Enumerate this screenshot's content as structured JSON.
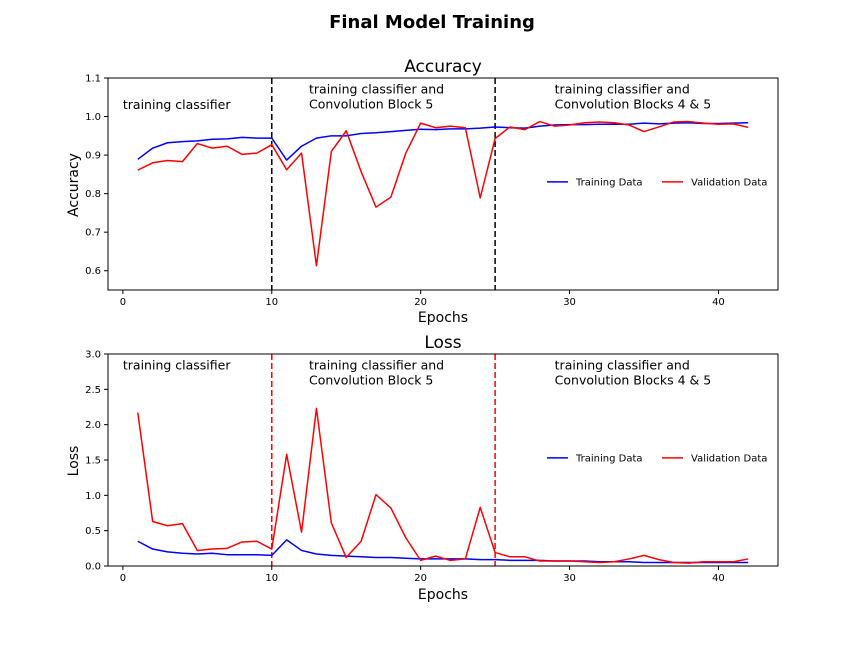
{
  "figure_title": "Final Model Training",
  "colors": {
    "training": "#0000ff",
    "validation": "#ff0000",
    "accuracy_divider": "#000000",
    "loss_divider": "#ff0000"
  },
  "chart_data": [
    {
      "type": "line",
      "title": "Accuracy",
      "xlabel": "Epochs",
      "ylabel": "Accuracy",
      "xlim": [
        -1,
        44
      ],
      "ylim": [
        0.55,
        1.1
      ],
      "xticks": [
        0,
        10,
        20,
        30,
        40
      ],
      "yticks": [
        0.6,
        0.7,
        0.8,
        0.9,
        1.0,
        1.1
      ],
      "ytick_labels": [
        "0.6",
        "0.7",
        "0.8",
        "0.9",
        "1.0",
        "1.1"
      ],
      "grid": false,
      "legend": "center-right",
      "dividers": [
        10,
        25
      ],
      "annotations": [
        {
          "x": 0,
          "y": 1.02,
          "lines": [
            "training classifier"
          ]
        },
        {
          "x": 12.5,
          "y": 1.06,
          "lines": [
            "training classifier and",
            "Convolution Block 5"
          ]
        },
        {
          "x": 29,
          "y": 1.06,
          "lines": [
            "training classifier and",
            "Convolution Blocks 4 & 5"
          ]
        }
      ],
      "x": [
        1,
        2,
        3,
        4,
        5,
        6,
        7,
        8,
        9,
        10,
        11,
        12,
        13,
        14,
        15,
        16,
        17,
        18,
        19,
        20,
        21,
        22,
        23,
        24,
        25,
        26,
        27,
        28,
        29,
        30,
        31,
        32,
        33,
        34,
        35,
        36,
        37,
        38,
        39,
        40,
        41,
        42
      ],
      "series": [
        {
          "name": "Training Data",
          "values": [
            0.889,
            0.918,
            0.932,
            0.935,
            0.937,
            0.941,
            0.942,
            0.946,
            0.944,
            0.944,
            0.887,
            0.923,
            0.944,
            0.95,
            0.95,
            0.956,
            0.958,
            0.961,
            0.964,
            0.967,
            0.966,
            0.968,
            0.968,
            0.97,
            0.973,
            0.971,
            0.97,
            0.975,
            0.978,
            0.979,
            0.979,
            0.98,
            0.98,
            0.98,
            0.983,
            0.981,
            0.983,
            0.984,
            0.982,
            0.982,
            0.983,
            0.984
          ]
        },
        {
          "name": "Validation Data",
          "values": [
            0.861,
            0.88,
            0.886,
            0.883,
            0.93,
            0.918,
            0.923,
            0.902,
            0.905,
            0.927,
            0.862,
            0.905,
            0.613,
            0.909,
            0.963,
            0.857,
            0.765,
            0.791,
            0.905,
            0.983,
            0.971,
            0.975,
            0.971,
            0.789,
            0.943,
            0.973,
            0.966,
            0.987,
            0.975,
            0.978,
            0.984,
            0.986,
            0.984,
            0.978,
            0.961,
            0.973,
            0.986,
            0.987,
            0.983,
            0.98,
            0.981,
            0.972
          ]
        }
      ]
    },
    {
      "type": "line",
      "title": "Loss",
      "xlabel": "Epochs",
      "ylabel": "Loss",
      "xlim": [
        -1,
        44
      ],
      "ylim": [
        0.0,
        3.0
      ],
      "xticks": [
        0,
        10,
        20,
        30,
        40
      ],
      "yticks": [
        0.0,
        0.5,
        1.0,
        1.5,
        2.0,
        2.5,
        3.0
      ],
      "ytick_labels": [
        "0.0",
        "0.5",
        "1.0",
        "1.5",
        "2.0",
        "2.5",
        "3.0"
      ],
      "grid": false,
      "legend": "center-right",
      "dividers": [
        10,
        25
      ],
      "annotations": [
        {
          "x": 0,
          "y": 2.78,
          "lines": [
            "training classifier"
          ]
        },
        {
          "x": 12.5,
          "y": 2.78,
          "lines": [
            "training classifier and",
            "Convolution Block 5"
          ]
        },
        {
          "x": 29,
          "y": 2.78,
          "lines": [
            "training classifier and",
            "Convolution Blocks 4 & 5"
          ]
        }
      ],
      "x": [
        1,
        2,
        3,
        4,
        5,
        6,
        7,
        8,
        9,
        10,
        11,
        12,
        13,
        14,
        15,
        16,
        17,
        18,
        19,
        20,
        21,
        22,
        23,
        24,
        25,
        26,
        27,
        28,
        29,
        30,
        31,
        32,
        33,
        34,
        35,
        36,
        37,
        38,
        39,
        40,
        41,
        42
      ],
      "series": [
        {
          "name": "Training Data",
          "values": [
            0.35,
            0.24,
            0.2,
            0.18,
            0.17,
            0.18,
            0.16,
            0.16,
            0.16,
            0.15,
            0.37,
            0.22,
            0.17,
            0.15,
            0.14,
            0.13,
            0.12,
            0.12,
            0.11,
            0.1,
            0.1,
            0.1,
            0.1,
            0.09,
            0.09,
            0.08,
            0.08,
            0.08,
            0.07,
            0.07,
            0.07,
            0.06,
            0.06,
            0.06,
            0.05,
            0.05,
            0.05,
            0.05,
            0.05,
            0.05,
            0.05,
            0.05
          ]
        },
        {
          "name": "Validation Data",
          "values": [
            2.17,
            0.63,
            0.57,
            0.6,
            0.22,
            0.24,
            0.25,
            0.34,
            0.35,
            0.24,
            1.58,
            0.48,
            2.23,
            0.61,
            0.12,
            0.35,
            1.01,
            0.82,
            0.4,
            0.08,
            0.14,
            0.08,
            0.1,
            0.83,
            0.19,
            0.13,
            0.13,
            0.07,
            0.07,
            0.07,
            0.06,
            0.05,
            0.06,
            0.1,
            0.15,
            0.09,
            0.05,
            0.04,
            0.06,
            0.06,
            0.06,
            0.1
          ]
        }
      ]
    }
  ]
}
